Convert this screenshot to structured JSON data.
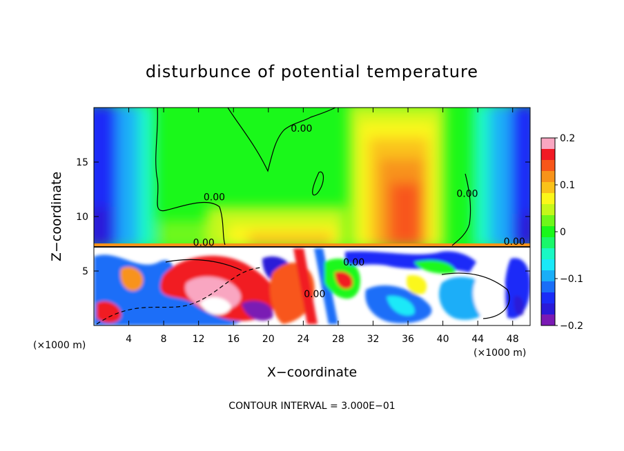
{
  "chart_data": {
    "type": "heatmap",
    "title": "disturbunce of potential temperature",
    "xlabel": "X−coordinate",
    "ylabel": "Z−coordinate",
    "x_unit_left": "(×1000 m)",
    "x_unit_right": "(×1000 m)",
    "footer": "CONTOUR INTERVAL = 3.000E−01",
    "xlim": [
      0,
      50
    ],
    "ylim": [
      0,
      20
    ],
    "x_ticks": [
      4,
      8,
      12,
      16,
      20,
      24,
      28,
      32,
      36,
      40,
      44,
      48
    ],
    "x_tick_labels": [
      "4",
      "8",
      "12",
      "16",
      "20",
      "24",
      "28",
      "32",
      "36",
      "40",
      "44",
      "48"
    ],
    "y_ticks": [
      5,
      10,
      15
    ],
    "y_tick_labels": [
      "5",
      "10",
      "15"
    ],
    "colorbar": {
      "range": [
        -0.2,
        0.2
      ],
      "ticks": [
        0.2,
        0.1,
        0,
        -0.1,
        -0.2
      ],
      "tick_labels": [
        "0.2",
        "0.1",
        "0",
        "−0.1",
        "−0.2"
      ],
      "colors": [
        "#f9a6c1",
        "#f11a24",
        "#f8561a",
        "#f8931a",
        "#fac21a",
        "#fbf71a",
        "#c5f81a",
        "#6ef81a",
        "#1af81a",
        "#1af86a",
        "#1af8c4",
        "#1ae9f8",
        "#1aaef8",
        "#1a6ef8",
        "#1a2cf8",
        "#2a1ad8",
        "#7a1ab4"
      ]
    },
    "contour_labels": [
      {
        "text": "0.00",
        "x": 13.8,
        "z": 11.5
      },
      {
        "text": "0.00",
        "x": 23.8,
        "z": 17.8
      },
      {
        "text": "0.00",
        "x": 42.8,
        "z": 11.8
      },
      {
        "text": "0.00",
        "x": 12.6,
        "z": 7.3
      },
      {
        "text": "0.00",
        "x": 29.8,
        "z": 5.5
      },
      {
        "text": "0.00",
        "x": 25.3,
        "z": 2.6
      },
      {
        "text": "0.00",
        "x": 48.2,
        "z": 7.4
      }
    ]
  }
}
